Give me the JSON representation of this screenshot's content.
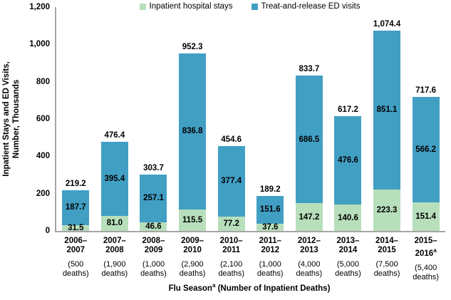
{
  "legend": {
    "items": [
      {
        "label": "Inpatient hospital stays",
        "color": "#b7dfbb"
      },
      {
        "label": "Treat-and-release ED visits",
        "color": "#429fc4"
      }
    ]
  },
  "y_axis": {
    "title_lines": [
      "Inpatient Stays and ED Visits,",
      "Number, Thousands"
    ],
    "ticks": [
      {
        "label": "0",
        "value": 0
      },
      {
        "label": "200",
        "value": 200
      },
      {
        "label": "400",
        "value": 400
      },
      {
        "label": "600",
        "value": 600
      },
      {
        "label": "800",
        "value": 800
      },
      {
        "label": "1,000",
        "value": 1000
      },
      {
        "label": "1,200",
        "value": 1200
      }
    ]
  },
  "x_axis": {
    "title_prefix": "Flu Season",
    "title_sup": "a",
    "title_suffix": " (Number of Inpatient Deaths)"
  },
  "chart_data": {
    "type": "bar",
    "subtype": "stacked",
    "title": "",
    "ylabel": "Inpatient Stays and ED Visits, Number, Thousands",
    "xlabel": "Flu Season(a) (Number of Inpatient Deaths)",
    "ylim": [
      0,
      1200
    ],
    "grid": false,
    "legend_position": "top",
    "axis_color": "#a6a6a6",
    "categories": [
      {
        "season_lines": [
          "2006–",
          "2007"
        ],
        "sup": "",
        "deaths_lines": [
          "(500",
          "deaths)"
        ]
      },
      {
        "season_lines": [
          "2007–",
          "2008"
        ],
        "sup": "",
        "deaths_lines": [
          "(1,900",
          "deaths)"
        ]
      },
      {
        "season_lines": [
          "2008–",
          "2009"
        ],
        "sup": "",
        "deaths_lines": [
          "(1,000",
          "deaths)"
        ]
      },
      {
        "season_lines": [
          "2009–",
          "2010"
        ],
        "sup": "",
        "deaths_lines": [
          "(2,900",
          "deaths)"
        ]
      },
      {
        "season_lines": [
          "2010–",
          "2011"
        ],
        "sup": "",
        "deaths_lines": [
          "(2,100",
          "deaths)"
        ]
      },
      {
        "season_lines": [
          "2011–",
          "2012"
        ],
        "sup": "",
        "deaths_lines": [
          "(1,000",
          "deaths)"
        ]
      },
      {
        "season_lines": [
          "2012–",
          "2013"
        ],
        "sup": "",
        "deaths_lines": [
          "(4,000",
          "deaths)"
        ]
      },
      {
        "season_lines": [
          "2013–",
          "2014"
        ],
        "sup": "",
        "deaths_lines": [
          "(5,000",
          "deaths)"
        ]
      },
      {
        "season_lines": [
          "2014–",
          "2015"
        ],
        "sup": "",
        "deaths_lines": [
          "(7,500",
          "deaths)"
        ]
      },
      {
        "season_lines": [
          "2015–",
          "2016"
        ],
        "sup": "a",
        "deaths_lines": [
          "(5,400",
          "deaths)"
        ]
      }
    ],
    "series": [
      {
        "name": "Inpatient hospital stays",
        "color": "#b7dfbb",
        "values": [
          31.5,
          81.0,
          46.6,
          115.5,
          77.2,
          37.6,
          147.2,
          140.6,
          223.3,
          151.4
        ],
        "labels": [
          "31.5",
          "81.0",
          "46.6",
          "115.5",
          "77.2",
          "37.6",
          "147.2",
          "140.6",
          "223.3",
          "151.4"
        ]
      },
      {
        "name": "Treat-and-release ED visits",
        "color": "#429fc4",
        "values": [
          187.7,
          395.4,
          257.1,
          836.8,
          377.4,
          151.6,
          686.5,
          476.6,
          851.1,
          566.2
        ],
        "labels": [
          "187.7",
          "395.4",
          "257.1",
          "836.8",
          "377.4",
          "151.6",
          "686.5",
          "476.6",
          "851.1",
          "566.2"
        ]
      }
    ],
    "totals": [
      219.2,
      476.4,
      303.7,
      952.3,
      454.6,
      189.2,
      833.7,
      617.2,
      1074.4,
      717.6
    ],
    "total_labels": [
      "219.2",
      "476.4",
      "303.7",
      "952.3",
      "454.6",
      "189.2",
      "833.7",
      "617.2",
      "1,074.4",
      "717.6"
    ]
  }
}
